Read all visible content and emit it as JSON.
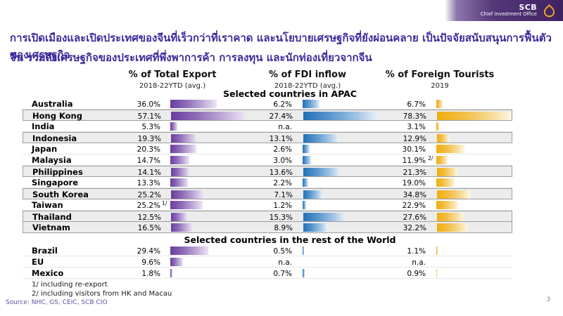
{
  "brand": {
    "name": "SCB",
    "subtitle": "Chief Investment Office",
    "banner_color": "#3d2161",
    "logo_color": "#f5a81c"
  },
  "title": {
    "line1": "การเปิดเมืองและเปิดประเทศของจีนที่เร็วกว่าที่เราคาด และนโยบายเศรษฐกิจที่ยังผ่อนคลาย เป็นปัจจัยสนับสนุนการฟื้นตัวของเศรษฐกิจ",
    "line2": "จีน รวมถึงเศรษฐกิจของประเทศที่พึ่งพาการค้า การลงทุน และนักท่องเที่ยวจากจีน",
    "color": "#3d2b9b"
  },
  "chart_data": {
    "type": "bar",
    "orientation": "horizontal",
    "columns": [
      {
        "label": "% of Total Export",
        "sublabel": "2018-22YTD (avg.)",
        "color": "#6a3d9e",
        "axis_max": 57.1
      },
      {
        "label": "% of FDI inflow",
        "sublabel": "2018-22YTD (avg.)",
        "color": "#2270b8",
        "axis_max": 27.4
      },
      {
        "label": "% of Foreign Tourists",
        "sublabel": "2019",
        "color": "#f0ad0c",
        "axis_max": 78.3
      }
    ],
    "sections": [
      {
        "title": "Selected countries in APAC",
        "rows": [
          {
            "country": "Australia",
            "export": 36.0,
            "export_label": "36.0%",
            "fdi": 6.2,
            "fdi_label": "6.2%",
            "tourists": 6.7,
            "tourists_label": "6.7%",
            "highlight": false
          },
          {
            "country": "Hong Kong",
            "export": 57.1,
            "export_label": "57.1%",
            "fdi": 27.4,
            "fdi_label": "27.4%",
            "tourists": 78.3,
            "tourists_label": "78.3%",
            "highlight": true
          },
          {
            "country": "India",
            "export": 5.3,
            "export_label": "5.3%",
            "fdi": null,
            "fdi_label": "n.a.",
            "tourists": 3.1,
            "tourists_label": "3.1%",
            "highlight": false
          },
          {
            "country": "Indonesia",
            "export": 19.3,
            "export_label": "19.3%",
            "fdi": 13.1,
            "fdi_label": "13.1%",
            "tourists": 12.9,
            "tourists_label": "12.9%",
            "highlight": true
          },
          {
            "country": "Japan",
            "export": 20.3,
            "export_label": "20.3%",
            "fdi": 2.6,
            "fdi_label": "2.6%",
            "tourists": 30.1,
            "tourists_label": "30.1%",
            "highlight": false
          },
          {
            "country": "Malaysia",
            "export": 14.7,
            "export_label": "14.7%",
            "fdi": 3.0,
            "fdi_label": "3.0%",
            "tourists": 11.9,
            "tourists_label": "11.9%",
            "tourists_note": "2/",
            "highlight": false
          },
          {
            "country": "Philippines",
            "export": 14.1,
            "export_label": "14.1%",
            "fdi": 13.6,
            "fdi_label": "13.6%",
            "tourists": 21.3,
            "tourists_label": "21.3%",
            "highlight": true
          },
          {
            "country": "Singapore",
            "export": 13.3,
            "export_label": "13.3%",
            "fdi": 2.2,
            "fdi_label": "2.2%",
            "tourists": 19.0,
            "tourists_label": "19.0%",
            "highlight": false
          },
          {
            "country": "South Korea",
            "export": 25.2,
            "export_label": "25.2%",
            "fdi": 7.1,
            "fdi_label": "7.1%",
            "tourists": 34.8,
            "tourists_label": "34.8%",
            "highlight": true
          },
          {
            "country": "Taiwan",
            "export": 25.2,
            "export_label": "25.2%",
            "export_note": "1/",
            "fdi": 1.2,
            "fdi_label": "1.2%",
            "tourists": 22.9,
            "tourists_label": "22.9%",
            "highlight": false
          },
          {
            "country": "Thailand",
            "export": 12.5,
            "export_label": "12.5%",
            "fdi": 15.3,
            "fdi_label": "15.3%",
            "tourists": 27.6,
            "tourists_label": "27.6%",
            "highlight": true
          },
          {
            "country": "Vietnam",
            "export": 16.5,
            "export_label": "16.5%",
            "fdi": 8.9,
            "fdi_label": "8.9%",
            "tourists": 32.2,
            "tourists_label": "32.2%",
            "highlight": true
          }
        ]
      },
      {
        "title": "Selected countries in the rest of the World",
        "rows": [
          {
            "country": "Brazil",
            "export": 29.4,
            "export_label": "29.4%",
            "fdi": 0.5,
            "fdi_label": "0.5%",
            "tourists": 1.1,
            "tourists_label": "1.1%",
            "highlight": false
          },
          {
            "country": "EU",
            "export": 9.6,
            "export_label": "9.6%",
            "fdi": null,
            "fdi_label": "n.a.",
            "tourists": null,
            "tourists_label": "n.a.",
            "highlight": false
          },
          {
            "country": "Mexico",
            "export": 1.8,
            "export_label": "1.8%",
            "fdi": 0.7,
            "fdi_label": "0.7%",
            "tourists": 0.9,
            "tourists_label": "0.9%",
            "highlight": false
          }
        ]
      }
    ],
    "footnotes": [
      "1/ including re-export",
      "2/ including visitors from HK and Macau"
    ]
  },
  "footer": {
    "source": "Source: NHC, GS, CEIC, SCB CIO",
    "page": "3"
  }
}
